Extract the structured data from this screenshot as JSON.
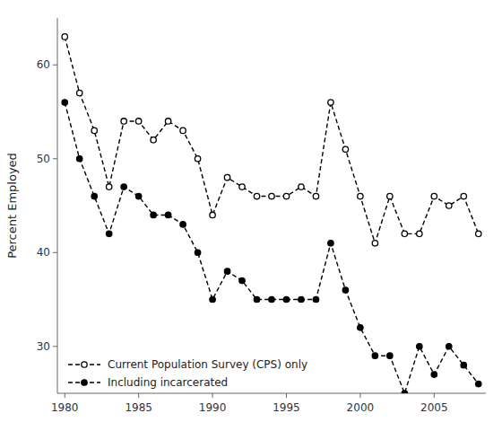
{
  "chart_data": {
    "type": "line",
    "ylabel": "Percent Employed",
    "x": [
      1980,
      1981,
      1982,
      1983,
      1984,
      1985,
      1986,
      1987,
      1988,
      1989,
      1990,
      1991,
      1992,
      1993,
      1994,
      1995,
      1996,
      1997,
      1998,
      1999,
      2000,
      2001,
      2002,
      2003,
      2004,
      2005,
      2006,
      2007,
      2008
    ],
    "series": [
      {
        "name": "Current Population Survey (CPS) only",
        "color": "#000000",
        "marker": "open-circle",
        "line_style": "dashed",
        "values": [
          63,
          57,
          53,
          47,
          54,
          54,
          52,
          54,
          53,
          50,
          44,
          48,
          47,
          46,
          46,
          46,
          47,
          46,
          56,
          51,
          46,
          41,
          46,
          42,
          42,
          46,
          45,
          46,
          42
        ]
      },
      {
        "name": "Including incarcerated",
        "color": "#000000",
        "marker": "circle",
        "line_style": "dashed",
        "values": [
          56,
          50,
          46,
          42,
          47,
          46,
          44,
          44,
          43,
          40,
          35,
          38,
          37,
          35,
          35,
          35,
          35,
          35,
          41,
          36,
          32,
          29,
          29,
          25,
          30,
          27,
          30,
          28,
          26
        ]
      }
    ],
    "xlim": [
      1979.5,
      2008.5
    ],
    "ylim": [
      25,
      65
    ],
    "xticks": [
      1980,
      1985,
      1990,
      1995,
      2000,
      2005
    ],
    "yticks": [
      30,
      40,
      50,
      60
    ],
    "grid": false,
    "legend": "lower left"
  }
}
